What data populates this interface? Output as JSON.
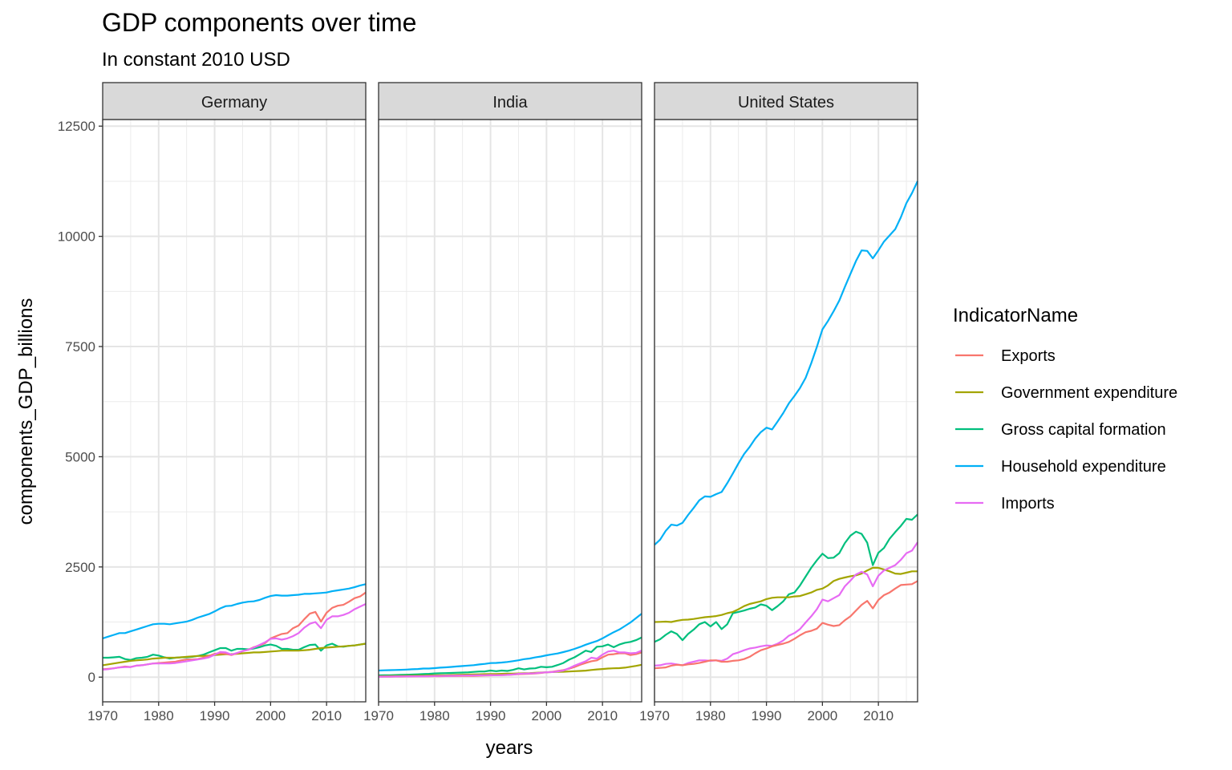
{
  "chart_data": {
    "type": "line",
    "title": "GDP components over time",
    "subtitle": "In constant 2010 USD",
    "xlabel": "years",
    "ylabel": "components_GDP_billions",
    "xlim": [
      1970,
      2017
    ],
    "ylim": [
      -560,
      12650
    ],
    "x_ticks": [
      1970,
      1980,
      1990,
      2000,
      2010
    ],
    "y_ticks": [
      0,
      2500,
      5000,
      7500,
      10000,
      12500
    ],
    "grid": true,
    "legend": {
      "title": "IndicatorName",
      "position": "right",
      "entries": [
        "Exports",
        "Government expenditure",
        "Gross capital formation",
        "Household expenditure",
        "Imports"
      ]
    },
    "colors": {
      "Exports": "#F8766D",
      "Government expenditure": "#A3A500",
      "Gross capital formation": "#00BF7D",
      "Household expenditure": "#00B0F6",
      "Imports": "#E76BF3"
    },
    "x": [
      1970,
      1971,
      1972,
      1973,
      1974,
      1975,
      1976,
      1977,
      1978,
      1979,
      1980,
      1981,
      1982,
      1983,
      1984,
      1985,
      1986,
      1987,
      1988,
      1989,
      1990,
      1991,
      1992,
      1993,
      1994,
      1995,
      1996,
      1997,
      1998,
      1999,
      2000,
      2001,
      2002,
      2003,
      2004,
      2005,
      2006,
      2007,
      2008,
      2009,
      2010,
      2011,
      2012,
      2013,
      2014,
      2015,
      2016,
      2017
    ],
    "panels": [
      {
        "name": "Germany",
        "series": [
          {
            "name": "Household expenditure",
            "values": [
              880,
              920,
              960,
              1000,
              1000,
              1040,
              1080,
              1120,
              1160,
              1200,
              1210,
              1210,
              1200,
              1220,
              1240,
              1260,
              1300,
              1350,
              1390,
              1430,
              1490,
              1560,
              1610,
              1620,
              1660,
              1690,
              1710,
              1720,
              1750,
              1800,
              1840,
              1860,
              1850,
              1850,
              1860,
              1870,
              1890,
              1890,
              1900,
              1910,
              1920,
              1950,
              1970,
              1990,
              2010,
              2040,
              2080,
              2110
            ]
          },
          {
            "name": "Gross capital formation",
            "values": [
              440,
              440,
              450,
              460,
              410,
              390,
              430,
              440,
              460,
              510,
              490,
              450,
              420,
              440,
              450,
              450,
              460,
              480,
              510,
              560,
              610,
              660,
              660,
              600,
              640,
              640,
              630,
              650,
              680,
              720,
              740,
              710,
              640,
              640,
              620,
              620,
              680,
              730,
              740,
              600,
              720,
              760,
              700,
              690,
              710,
              720,
              740,
              760
            ]
          },
          {
            "name": "Government expenditure",
            "values": [
              270,
              290,
              310,
              330,
              350,
              370,
              380,
              390,
              400,
              420,
              430,
              440,
              440,
              440,
              450,
              460,
              470,
              480,
              480,
              490,
              500,
              510,
              520,
              520,
              530,
              540,
              550,
              560,
              560,
              570,
              580,
              590,
              600,
              600,
              600,
              600,
              610,
              620,
              640,
              660,
              670,
              680,
              690,
              700,
              710,
              720,
              740,
              760
            ]
          },
          {
            "name": "Exports",
            "values": [
              180,
              190,
              200,
              220,
              240,
              230,
              260,
              270,
              290,
              310,
              320,
              330,
              340,
              350,
              380,
              400,
              400,
              410,
              440,
              480,
              530,
              540,
              530,
              500,
              540,
              590,
              620,
              680,
              720,
              770,
              880,
              930,
              980,
              1000,
              1110,
              1170,
              1310,
              1440,
              1480,
              1260,
              1460,
              1570,
              1620,
              1640,
              1710,
              1790,
              1830,
              1920
            ]
          },
          {
            "name": "Imports",
            "values": [
              170,
              180,
              200,
              220,
              230,
              230,
              260,
              270,
              290,
              310,
              310,
              310,
              310,
              320,
              340,
              360,
              380,
              400,
              420,
              450,
              510,
              570,
              560,
              510,
              550,
              590,
              620,
              670,
              730,
              790,
              870,
              880,
              850,
              880,
              930,
              1000,
              1120,
              1210,
              1250,
              1110,
              1300,
              1380,
              1380,
              1410,
              1460,
              1540,
              1600,
              1660
            ]
          }
        ]
      },
      {
        "name": "India",
        "series": [
          {
            "name": "Household expenditure",
            "values": [
              150,
              155,
              158,
              162,
              166,
              172,
              178,
              185,
              195,
              195,
              205,
              215,
              222,
              232,
              242,
              252,
              262,
              272,
              288,
              300,
              318,
              322,
              332,
              345,
              362,
              382,
              408,
              422,
              448,
              468,
              495,
              518,
              538,
              568,
              600,
              640,
              685,
              735,
              780,
              820,
              880,
              950,
              1020,
              1080,
              1160,
              1240,
              1340,
              1440
            ]
          },
          {
            "name": "Gross capital formation",
            "values": [
              40,
              42,
              45,
              48,
              52,
              55,
              58,
              65,
              70,
              75,
              85,
              90,
              92,
              95,
              100,
              105,
              110,
              118,
              128,
              130,
              150,
              135,
              150,
              140,
              165,
              200,
              175,
              195,
              200,
              235,
              225,
              235,
              275,
              320,
              395,
              450,
              525,
              600,
              570,
              690,
              700,
              740,
              680,
              740,
              780,
              800,
              840,
              900
            ]
          },
          {
            "name": "Government expenditure",
            "values": [
              20,
              22,
              25,
              27,
              28,
              30,
              32,
              33,
              35,
              38,
              40,
              42,
              45,
              48,
              52,
              55,
              58,
              62,
              65,
              68,
              72,
              72,
              75,
              78,
              80,
              85,
              88,
              92,
              98,
              105,
              110,
              115,
              118,
              122,
              128,
              135,
              140,
              148,
              162,
              175,
              185,
              195,
              200,
              205,
              215,
              235,
              255,
              280
            ]
          },
          {
            "name": "Exports",
            "values": [
              10,
              11,
              12,
              13,
              14,
              15,
              17,
              18,
              19,
              20,
              22,
              23,
              24,
              25,
              26,
              27,
              28,
              30,
              33,
              36,
              40,
              44,
              48,
              52,
              58,
              68,
              72,
              76,
              82,
              95,
              110,
              120,
              140,
              160,
              190,
              230,
              280,
              320,
              360,
              380,
              450,
              510,
              520,
              540,
              540,
              500,
              520,
              560
            ]
          },
          {
            "name": "Imports",
            "values": [
              12,
              13,
              14,
              15,
              16,
              17,
              18,
              19,
              21,
              23,
              26,
              28,
              30,
              32,
              34,
              36,
              38,
              40,
              42,
              44,
              47,
              42,
              46,
              52,
              60,
              75,
              80,
              85,
              90,
              100,
              110,
              115,
              130,
              150,
              200,
              260,
              310,
              360,
              440,
              420,
              510,
              580,
              600,
              560,
              560,
              540,
              550,
              600
            ]
          }
        ]
      },
      {
        "name": "United States",
        "series": [
          {
            "name": "Household expenditure",
            "values": [
              3000,
              3120,
              3320,
              3460,
              3440,
              3500,
              3680,
              3840,
              4010,
              4100,
              4090,
              4150,
              4200,
              4400,
              4620,
              4850,
              5060,
              5220,
              5410,
              5560,
              5660,
              5620,
              5800,
              5990,
              6210,
              6380,
              6560,
              6790,
              7120,
              7490,
              7890,
              8080,
              8300,
              8540,
              8850,
              9150,
              9440,
              9680,
              9670,
              9500,
              9680,
              9880,
              10020,
              10160,
              10430,
              10750,
              10980,
              11250
            ]
          },
          {
            "name": "Gross capital formation",
            "values": [
              800,
              860,
              960,
              1040,
              980,
              840,
              980,
              1080,
              1200,
              1250,
              1150,
              1250,
              1090,
              1200,
              1450,
              1480,
              1510,
              1550,
              1580,
              1650,
              1620,
              1520,
              1610,
              1720,
              1880,
              1920,
              2080,
              2280,
              2480,
              2650,
              2800,
              2700,
              2710,
              2810,
              3040,
              3210,
              3300,
              3250,
              3050,
              2540,
              2820,
              2930,
              3140,
              3290,
              3430,
              3590,
              3570,
              3690
            ]
          },
          {
            "name": "Government expenditure",
            "values": [
              1250,
              1255,
              1260,
              1250,
              1280,
              1300,
              1305,
              1320,
              1340,
              1360,
              1370,
              1385,
              1410,
              1450,
              1480,
              1540,
              1610,
              1660,
              1690,
              1720,
              1770,
              1800,
              1810,
              1810,
              1810,
              1830,
              1840,
              1880,
              1920,
              1980,
              2010,
              2080,
              2180,
              2230,
              2260,
              2290,
              2310,
              2350,
              2420,
              2480,
              2480,
              2440,
              2400,
              2350,
              2340,
              2370,
              2400,
              2400
            ]
          },
          {
            "name": "Imports",
            "values": [
              260,
              270,
              300,
              310,
              290,
              270,
              320,
              350,
              380,
              380,
              370,
              380,
              370,
              420,
              520,
              560,
              610,
              650,
              670,
              700,
              720,
              710,
              760,
              830,
              940,
              1000,
              1090,
              1240,
              1380,
              1540,
              1760,
              1720,
              1790,
              1860,
              2060,
              2190,
              2330,
              2390,
              2330,
              2060,
              2300,
              2420,
              2480,
              2540,
              2660,
              2810,
              2870,
              3060
            ]
          },
          {
            "name": "Exports",
            "values": [
              200,
              210,
              220,
              260,
              280,
              270,
              290,
              300,
              320,
              350,
              380,
              380,
              350,
              350,
              370,
              380,
              410,
              460,
              540,
              610,
              650,
              700,
              730,
              760,
              800,
              870,
              950,
              1020,
              1050,
              1100,
              1230,
              1190,
              1160,
              1180,
              1290,
              1380,
              1510,
              1640,
              1730,
              1560,
              1750,
              1860,
              1920,
              2010,
              2090,
              2100,
              2110,
              2180
            ]
          }
        ]
      }
    ]
  }
}
